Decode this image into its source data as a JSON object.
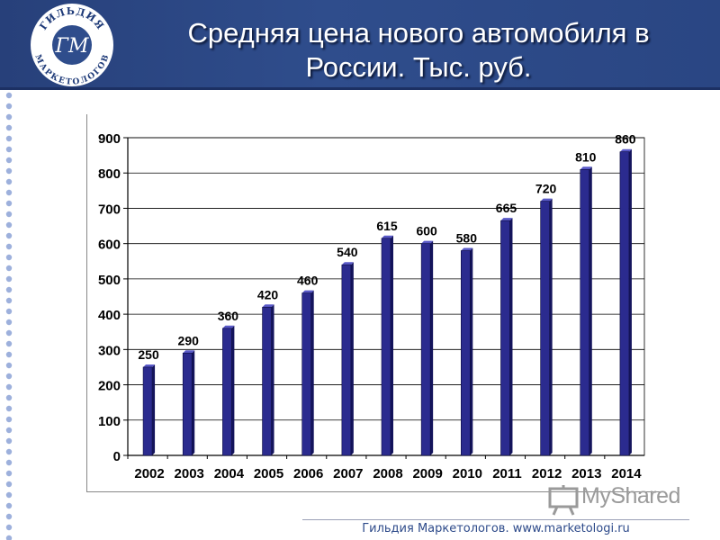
{
  "header": {
    "title_line1": "Средняя цена нового автомобиля в",
    "title_line2": "России.  Тыс. руб.",
    "background_color": "#2f4d8c"
  },
  "logo": {
    "text_top": "ГИЛЬДИЯ",
    "text_bottom": "МАРКЕТОЛОГОВ",
    "monogram": "ГМ"
  },
  "watermark": {
    "text": "MyShared",
    "icon": "presentation-board-icon"
  },
  "footer": {
    "text": "Гильдия Маркетологов. www.marketologi.ru"
  },
  "chart_data": {
    "type": "bar",
    "title": "",
    "xlabel": "",
    "ylabel": "",
    "categories": [
      "2002",
      "2003",
      "2004",
      "2005",
      "2006",
      "2007",
      "2008",
      "2009",
      "2010",
      "2011",
      "2012",
      "2013",
      "2014"
    ],
    "values": [
      250,
      290,
      360,
      420,
      460,
      540,
      615,
      600,
      580,
      665,
      720,
      810,
      860
    ],
    "ylim": [
      0,
      900
    ],
    "yticks": [
      0,
      100,
      200,
      300,
      400,
      500,
      600,
      700,
      800,
      900
    ],
    "grid": true,
    "bar_color": "#2b2b8f",
    "data_labels": true,
    "legend": "none"
  }
}
